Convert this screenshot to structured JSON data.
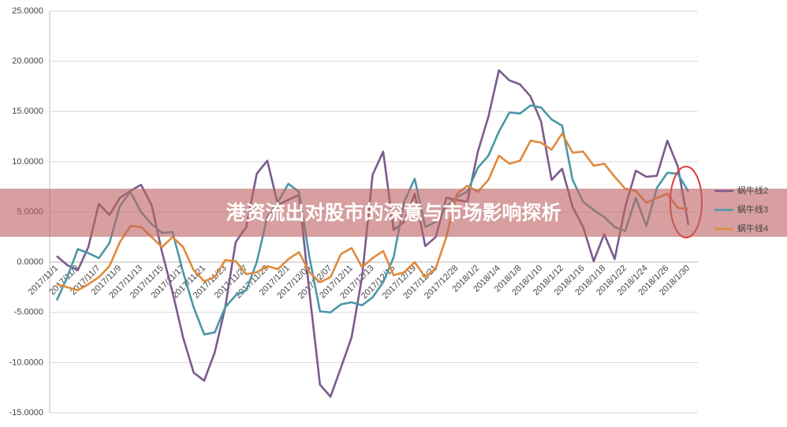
{
  "chart_data": {
    "type": "line",
    "title": "港资流出对股市的深意与市场影响探析",
    "categories": [
      "2017/11/1",
      null,
      "2017/11/3",
      null,
      "2017/11/7",
      null,
      "2017/11/9",
      null,
      "2017/11/13",
      null,
      "2017/11/15",
      null,
      "2017/11/17",
      null,
      "2017/11/21",
      null,
      "2017/11/23",
      null,
      "2017/11/27",
      null,
      "2017/11/29",
      null,
      "2017/12/1",
      null,
      "2017/12/05",
      null,
      "2017/12/07",
      null,
      "2017/12/11",
      null,
      "2017/12/13",
      null,
      "2017/12/15",
      null,
      "2017/12/19",
      null,
      "2017/12/21",
      null,
      "2017/12/28",
      null,
      "2018/1/2",
      null,
      "2018/1/4",
      null,
      "2018/1/8",
      null,
      "2018/1/10",
      null,
      "2018/1/12",
      null,
      "2018/1/16",
      null,
      "2018/1/18",
      null,
      "2018/1/22",
      null,
      "2018/1/24",
      null,
      "2018/1/26",
      null,
      "2018/1/30"
    ],
    "series": [
      {
        "name": "蜗牛线2",
        "color": "#7b5b8d",
        "values": [
          0.6,
          -0.3,
          -0.8,
          1.5,
          5.8,
          4.7,
          6.4,
          7.1,
          7.7,
          5.7,
          1.0,
          -3.0,
          -7.5,
          -11.0,
          -11.8,
          -9.0,
          -4.5,
          2.0,
          3.5,
          8.8,
          10.1,
          5.7,
          6.2,
          6.7,
          -3.0,
          -12.2,
          -13.4,
          -10.5,
          -7.5,
          -1.5,
          8.7,
          11.0,
          3.2,
          4.0,
          6.8,
          1.6,
          2.5,
          6.4,
          6.2,
          6.0,
          11.0,
          14.5,
          19.1,
          18.1,
          17.7,
          16.5,
          14.0,
          8.2,
          9.3,
          5.5,
          3.5,
          0.1,
          2.8,
          0.3,
          5.5,
          9.1,
          8.5,
          8.6,
          12.1,
          9.5,
          3.7
        ]
      },
      {
        "name": "蜗牛线3",
        "color": "#4a98a8",
        "values": [
          -3.8,
          -1.5,
          1.3,
          0.9,
          0.4,
          1.9,
          5.6,
          7.0,
          5.0,
          3.8,
          2.9,
          3.0,
          -1.0,
          -4.5,
          -7.2,
          -7.0,
          -4.5,
          -3.3,
          -2.8,
          0.0,
          4.5,
          6.0,
          7.8,
          7.0,
          0.5,
          -4.9,
          -5.0,
          -4.2,
          -4.0,
          -4.3,
          -3.5,
          -2.0,
          0.5,
          6.0,
          8.3,
          3.5,
          4.0,
          5.5,
          6.5,
          7.0,
          9.4,
          10.6,
          13.0,
          14.9,
          14.8,
          15.6,
          15.4,
          14.2,
          13.6,
          8.2,
          6.0,
          5.2,
          4.5,
          3.5,
          3.1,
          6.4,
          3.6,
          7.4,
          8.9,
          8.8,
          7.0
        ]
      },
      {
        "name": "蜗牛线4",
        "color": "#e08a3c",
        "values": [
          -2.2,
          -2.5,
          -2.8,
          -2.2,
          -1.5,
          -0.4,
          2.0,
          3.6,
          3.5,
          2.5,
          1.5,
          2.5,
          1.5,
          -0.8,
          -1.9,
          -1.5,
          0.2,
          0.1,
          -1.2,
          -1.0,
          -0.4,
          -0.7,
          0.3,
          1.0,
          -1.0,
          -2.0,
          -1.5,
          0.8,
          1.4,
          -0.5,
          0.4,
          1.1,
          -1.3,
          -1.0,
          0.0,
          -1.5,
          -0.6,
          2.5,
          6.8,
          7.6,
          7.0,
          8.2,
          10.6,
          9.8,
          10.1,
          12.1,
          11.9,
          11.2,
          12.8,
          10.9,
          11.0,
          9.6,
          9.8,
          8.5,
          7.3,
          7.1,
          5.9,
          6.4,
          6.8,
          5.4,
          5.3
        ]
      }
    ],
    "ylim": [
      -15,
      25
    ],
    "yticks": [
      {
        "value": -15,
        "label": "-15.0000"
      },
      {
        "value": -10,
        "label": "-10.0000"
      },
      {
        "value": -5,
        "label": "-5.0000"
      },
      {
        "value": 0,
        "label": "0.0000"
      },
      {
        "value": 5,
        "label": "5.0000"
      },
      {
        "value": 10,
        "label": "10.0000"
      },
      {
        "value": 15,
        "label": "15.0000"
      },
      {
        "value": 20,
        "label": "20.0000"
      },
      {
        "value": 25,
        "label": "25.0000"
      }
    ],
    "grid": true,
    "legend": "right"
  }
}
